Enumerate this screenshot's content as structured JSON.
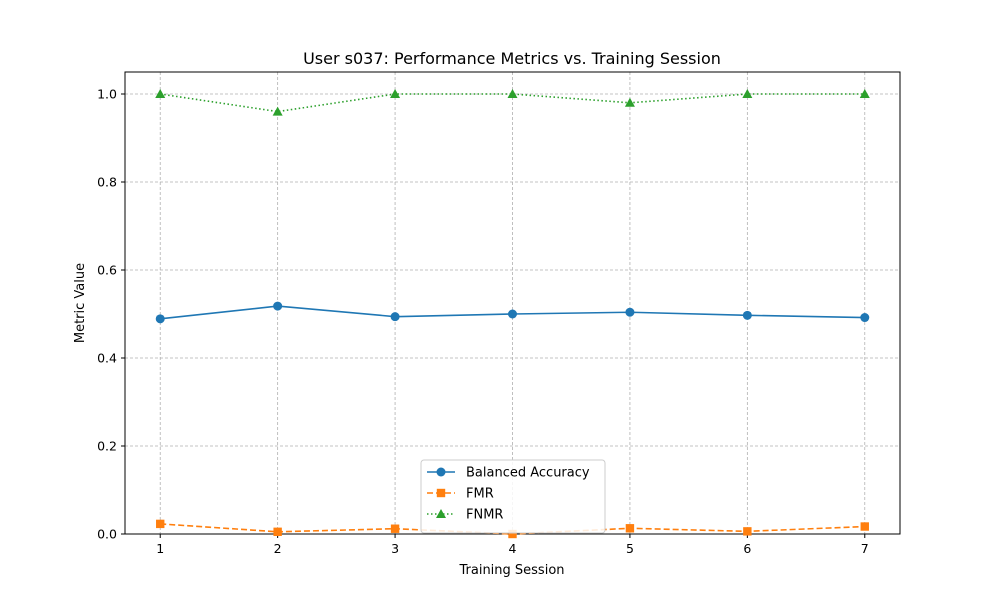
{
  "chart_data": {
    "type": "line",
    "title": "User s037: Performance Metrics vs. Training Session",
    "xlabel": "Training Session",
    "ylabel": "Metric Value",
    "x": [
      1,
      2,
      3,
      4,
      5,
      6,
      7
    ],
    "xticks": [
      "1",
      "2",
      "3",
      "4",
      "5",
      "6",
      "7"
    ],
    "yticks": [
      "0.0",
      "0.2",
      "0.4",
      "0.6",
      "0.8",
      "1.0"
    ],
    "ylim": [
      0,
      1.05
    ],
    "xlim": [
      0.7,
      7.3
    ],
    "grid": true,
    "legend_position": "lower-center",
    "series": [
      {
        "name": "Balanced Accuracy",
        "color": "#1f77b4",
        "linestyle": "solid",
        "marker": "circle",
        "values": [
          0.489,
          0.518,
          0.494,
          0.5,
          0.504,
          0.497,
          0.492
        ]
      },
      {
        "name": "FMR",
        "color": "#ff7f0e",
        "linestyle": "dashed",
        "marker": "square",
        "values": [
          0.023,
          0.005,
          0.012,
          0.0,
          0.013,
          0.006,
          0.017
        ]
      },
      {
        "name": "FNMR",
        "color": "#2ca02c",
        "linestyle": "dotted",
        "marker": "triangle",
        "values": [
          1.0,
          0.96,
          1.0,
          1.0,
          0.98,
          1.0,
          1.0
        ]
      }
    ]
  }
}
